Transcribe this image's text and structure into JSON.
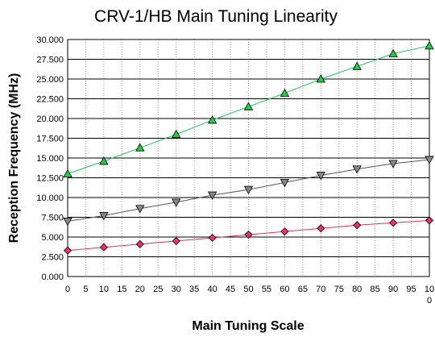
{
  "chart_data": {
    "type": "line",
    "title": "CRV-1/HB Main Tuning Linearity",
    "xlabel": "Main Tuning Scale",
    "ylabel": "Reception Frequency (MHz)",
    "xlim": [
      0,
      100
    ],
    "ylim": [
      0,
      30
    ],
    "x_ticks": [
      "0",
      "5",
      "10",
      "15",
      "20",
      "25",
      "30",
      "35",
      "40",
      "45",
      "50",
      "55",
      "60",
      "65",
      "70",
      "75",
      "80",
      "85",
      "90",
      "95",
      "10\n0"
    ],
    "y_ticks": [
      "0.000",
      "2.500",
      "5.000",
      "7.500",
      "10.000",
      "12.500",
      "15.000",
      "17.500",
      "20.000",
      "22.500",
      "25.000",
      "27.500",
      "30.000"
    ],
    "grid": {
      "horizontal": true,
      "vertical_dotted": true
    },
    "legend": "none",
    "x": [
      0,
      10,
      20,
      30,
      40,
      50,
      60,
      70,
      80,
      90,
      100
    ],
    "series": [
      {
        "color": "#22c55e",
        "marker_color": "#22cc44",
        "marker": "triangle-up",
        "values": [
          13.0,
          14.6,
          16.3,
          18.0,
          19.8,
          21.5,
          23.2,
          25.0,
          26.6,
          28.2,
          29.2
        ]
      },
      {
        "color": "#555555",
        "marker_color": "#888888",
        "marker": "triangle-down",
        "values": [
          7.0,
          7.7,
          8.6,
          9.4,
          10.3,
          11.0,
          11.9,
          12.8,
          13.6,
          14.3,
          14.8
        ]
      },
      {
        "color": "#dd3355",
        "marker_color": "#ee3366",
        "marker": "diamond",
        "values": [
          3.3,
          3.7,
          4.1,
          4.5,
          4.9,
          5.3,
          5.7,
          6.1,
          6.5,
          6.8,
          7.1
        ]
      }
    ]
  }
}
